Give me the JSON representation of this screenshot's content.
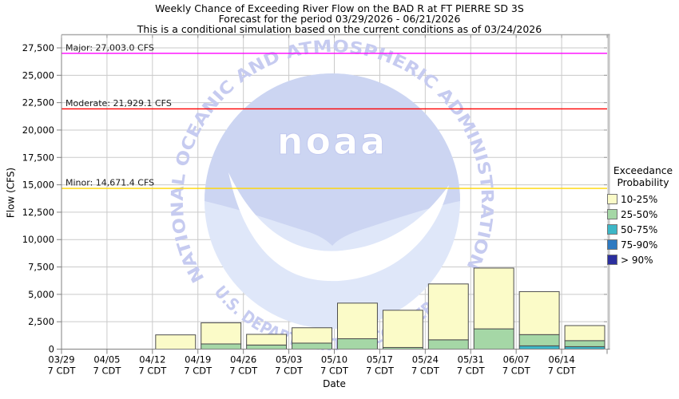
{
  "title": {
    "line1": "Weekly Chance of Exceeding River Flow on the BAD R at FT PIERRE SD 3S",
    "line2": "Forecast for the period 03/29/2026 - 06/21/2026",
    "line3": "This is a conditional simulation based on the current conditions as of 03/24/2026"
  },
  "y_axis": {
    "label": "Flow (CFS)"
  },
  "x_axis": {
    "label": "Date",
    "tick_sublabel": "7 CDT"
  },
  "legend": {
    "title_line1": "Exceedance",
    "title_line2": "Probability",
    "items": [
      {
        "label": "10-25%",
        "color": "#fbfbc8"
      },
      {
        "label": "25-50%",
        "color": "#a5d7a6"
      },
      {
        "label": "50-75%",
        "color": "#3db7c7"
      },
      {
        "label": "75-90%",
        "color": "#2f7ac1"
      },
      {
        "label": "> 90%",
        "color": "#2b2f9e"
      }
    ]
  },
  "watermark": {
    "arc_top": "NATIONAL OCEANIC AND ATMOSPHERIC ADMINISTRATION",
    "arc_bottom": "U.S. DEPARTMENT OF COMMERCE",
    "logo_text": "noaa"
  },
  "chart_data": {
    "type": "bar",
    "stacked": true,
    "title": "Weekly Chance of Exceeding River Flow on the BAD R at FT PIERRE SD 3S",
    "subtitle": "Forecast for the period 03/29/2026 - 06/21/2026",
    "note": "This is a conditional simulation based on the current conditions as of 03/24/2026",
    "xlabel": "Date",
    "ylabel": "Flow (CFS)",
    "ylim": [
      0,
      28700
    ],
    "grid": true,
    "legend_position": "right",
    "categories": [
      "03/29",
      "04/05",
      "04/12",
      "04/19",
      "04/26",
      "05/03",
      "05/10",
      "05/17",
      "05/24",
      "05/31",
      "06/07",
      "06/14"
    ],
    "tick_sublabel": "7 CDT",
    "stack_order_bottom_to_top": [
      "> 90%",
      "75-90%",
      "50-75%",
      "25-50%",
      "10-25%"
    ],
    "series": [
      {
        "name": "10-25%",
        "color": "#fbfbc8",
        "values": [
          0,
          0,
          1300,
          1925,
          975,
          1400,
          3250,
          3400,
          5100,
          5550,
          3925,
          1375
        ]
      },
      {
        "name": "25-50%",
        "color": "#a5d7a6",
        "values": [
          0,
          0,
          0,
          475,
          375,
          550,
          950,
          150,
          850,
          1850,
          1025,
          550
        ]
      },
      {
        "name": "50-75%",
        "color": "#3db7c7",
        "values": [
          0,
          0,
          0,
          0,
          0,
          0,
          0,
          0,
          0,
          0,
          300,
          225
        ]
      },
      {
        "name": "75-90%",
        "color": "#2f7ac1",
        "values": [
          0,
          0,
          0,
          0,
          0,
          0,
          0,
          0,
          0,
          0,
          0,
          0
        ]
      },
      {
        "name": "> 90%",
        "color": "#2b2f9e",
        "values": [
          0,
          0,
          0,
          0,
          0,
          0,
          0,
          0,
          0,
          0,
          0,
          0
        ]
      }
    ],
    "bar_totals_cfs": [
      0,
      0,
      1300,
      2400,
      1350,
      1950,
      4200,
      3550,
      5950,
      7400,
      5250,
      2150
    ],
    "thresholds": [
      {
        "name": "Major",
        "label": "Major: 27,003.0 CFS",
        "value": 27003.0,
        "color": "#ff00ff"
      },
      {
        "name": "Moderate",
        "label": "Moderate: 21,929.1 CFS",
        "value": 21929.1,
        "color": "#ff0000"
      },
      {
        "name": "Minor",
        "label": "Minor: 14,671.4 CFS",
        "value": 14671.4,
        "color": "#ffd700"
      }
    ],
    "y_ticks": [
      0,
      2500,
      5000,
      7500,
      10000,
      12500,
      15000,
      17500,
      20000,
      22500,
      25000,
      27500
    ],
    "y_tick_labels": [
      "0",
      "2,500",
      "5,000",
      "7,500",
      "10,000",
      "12,500",
      "15,000",
      "17,500",
      "20,000",
      "22,500",
      "25,000",
      "27,500"
    ]
  }
}
